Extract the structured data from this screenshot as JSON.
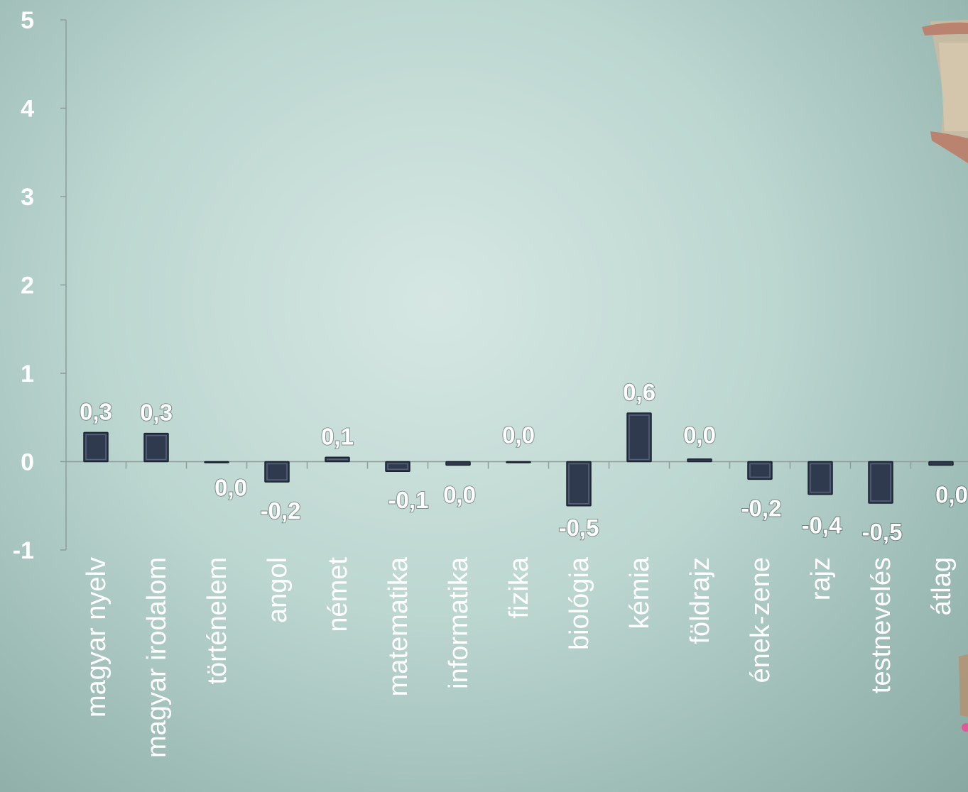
{
  "chart_data": {
    "type": "bar",
    "title": "",
    "xlabel": "",
    "ylabel": "",
    "ylim": [
      -1,
      5
    ],
    "yticks": [
      "-1",
      "0",
      "1",
      "2",
      "3",
      "4",
      "5"
    ],
    "categories": [
      "magyar nyelv",
      "magyar irodalom",
      "történelem",
      "angol",
      "német",
      "matematika",
      "informatika",
      "fizika",
      "biológia",
      "kémia",
      "földrajz",
      "ének-zene",
      "rajz",
      "testnevelés",
      "átlag"
    ],
    "values": [
      0.33,
      0.32,
      0.0,
      -0.23,
      0.05,
      -0.11,
      -0.04,
      0.0,
      -0.5,
      0.55,
      0.03,
      -0.2,
      -0.37,
      -0.47,
      -0.04
    ],
    "data_labels": [
      "0,3",
      "0,3",
      "0,0",
      "-0,2",
      "0,1",
      "-0,1",
      "0,0",
      "0,0",
      "-0,5",
      "0,6",
      "0,0",
      "-0,2",
      "-0,4",
      "-0,5",
      "0,0"
    ],
    "grid": false,
    "legend": "none",
    "colors": {
      "bar": "#2f3a4e",
      "text": "#ffffff",
      "axis": "#8f9d9a"
    }
  }
}
